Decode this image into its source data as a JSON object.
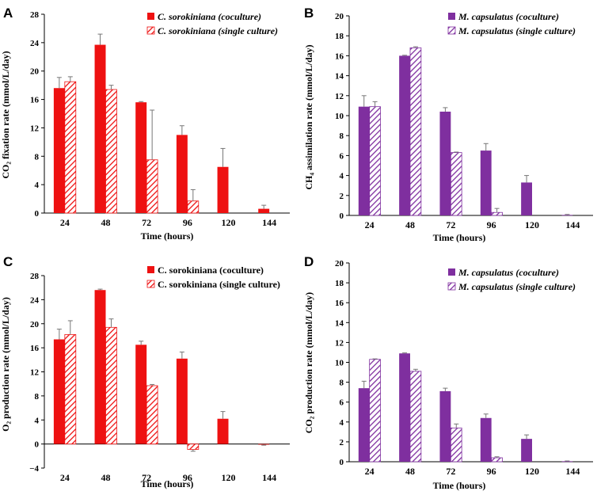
{
  "colors": {
    "red": "#ee1111",
    "purple": "#7f2f9f",
    "error_bar": "#777777",
    "axis": "#000000"
  },
  "chart_data": [
    {
      "panel": "A",
      "type": "bar",
      "categories": [
        "24",
        "48",
        "72",
        "96",
        "120",
        "144"
      ],
      "xlabel": "Time (hours)",
      "ylabel": "CO₂ fixation rate (mmol/L/day)",
      "ylim": [
        0,
        28
      ],
      "yticks": [
        0,
        4,
        8,
        12,
        16,
        20,
        24,
        28
      ],
      "color_key": "red",
      "legend_italic": true,
      "series": [
        {
          "name": "C. sorokiniana (coculture)",
          "style": "solid",
          "values": [
            17.6,
            23.7,
            15.6,
            11.0,
            6.5,
            0.6
          ],
          "errors": [
            1.5,
            1.5,
            0.1,
            1.3,
            2.6,
            0.5
          ]
        },
        {
          "name": "C. sorokiniana (single culture)",
          "style": "hatched",
          "values": [
            18.5,
            17.4,
            7.5,
            1.7,
            null,
            null
          ],
          "errors": [
            0.7,
            0.6,
            7.0,
            1.6,
            null,
            null
          ]
        }
      ]
    },
    {
      "panel": "B",
      "type": "bar",
      "categories": [
        "24",
        "48",
        "72",
        "96",
        "120",
        "144"
      ],
      "xlabel": "Time (hours)",
      "ylabel": "CH₄ assimilation rate (mmol/L/day)",
      "ylim": [
        0,
        20
      ],
      "yticks": [
        0,
        2,
        4,
        6,
        8,
        10,
        12,
        14,
        16,
        18,
        20
      ],
      "color_key": "purple",
      "legend_italic": true,
      "series": [
        {
          "name": "M. capsulatus (coculture)",
          "style": "solid",
          "values": [
            10.9,
            16.0,
            10.4,
            6.5,
            3.3,
            0.05
          ],
          "errors": [
            1.1,
            0.05,
            0.4,
            0.7,
            0.7,
            0.05
          ]
        },
        {
          "name": "M. capsulatus (single culture)",
          "style": "hatched",
          "values": [
            10.9,
            16.8,
            6.3,
            0.3,
            null,
            null
          ],
          "errors": [
            0.5,
            0.1,
            0.05,
            0.4,
            null,
            null
          ]
        }
      ]
    },
    {
      "panel": "C",
      "type": "bar",
      "categories": [
        "24",
        "48",
        "72",
        "96",
        "120",
        "144"
      ],
      "xlabel": "Time (hours)",
      "ylabel": "O₂ production rate (mmol/L/day)",
      "ylim": [
        -4,
        28
      ],
      "yticks": [
        -4,
        0,
        4,
        8,
        12,
        16,
        20,
        24,
        28
      ],
      "color_key": "red",
      "legend_italic": false,
      "series": [
        {
          "name": "C. sorokiniana (coculture)",
          "style": "solid",
          "values": [
            17.4,
            25.6,
            16.5,
            14.2,
            4.2,
            -0.1
          ],
          "errors": [
            1.7,
            0.15,
            0.6,
            1.1,
            1.2,
            0.1
          ]
        },
        {
          "name": "C. sorokiniana (single culture)",
          "style": "hatched",
          "values": [
            18.2,
            19.4,
            9.7,
            -0.9,
            null,
            null
          ],
          "errors": [
            2.3,
            1.4,
            0.2,
            0.3,
            null,
            null
          ]
        }
      ]
    },
    {
      "panel": "D",
      "type": "bar",
      "categories": [
        "24",
        "48",
        "72",
        "96",
        "120",
        "144"
      ],
      "xlabel": "Time (hours)",
      "ylabel": "CO₂ production rate (mmol/L/day)",
      "ylim": [
        0,
        20
      ],
      "yticks": [
        0,
        2,
        4,
        6,
        8,
        10,
        12,
        14,
        16,
        18,
        20
      ],
      "color_key": "purple",
      "legend_italic": true,
      "series": [
        {
          "name": "M. capsulatus (coculture)",
          "style": "solid",
          "values": [
            7.4,
            10.9,
            7.1,
            4.4,
            2.3,
            0.05
          ],
          "errors": [
            0.7,
            0.05,
            0.3,
            0.4,
            0.4,
            0.03
          ]
        },
        {
          "name": "M. capsulatus (single culture)",
          "style": "hatched",
          "values": [
            10.3,
            9.1,
            3.4,
            0.4,
            null,
            null
          ],
          "errors": [
            0.05,
            0.2,
            0.4,
            0.1,
            null,
            null
          ]
        }
      ]
    }
  ]
}
